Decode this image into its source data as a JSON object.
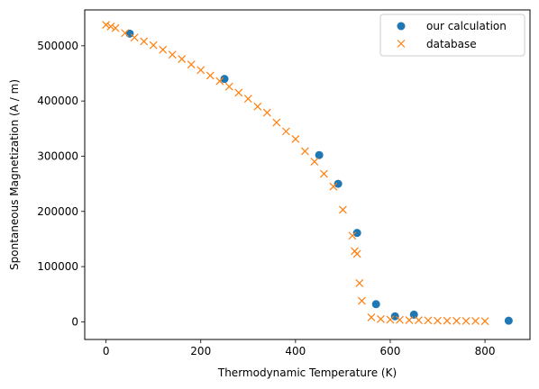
{
  "chart_data": {
    "type": "scatter",
    "xlabel": "Thermodynamic Temperature (K)",
    "ylabel": "Spontaneous Magnetization (A / m)",
    "xlim": [
      -45,
      895
    ],
    "ylim": [
      -32000,
      565000
    ],
    "x_ticks": [
      0,
      200,
      400,
      600,
      800
    ],
    "y_ticks": [
      0,
      100000,
      200000,
      300000,
      400000,
      500000
    ],
    "legend": {
      "placement": "top-right"
    },
    "series": [
      {
        "name": "our calculation",
        "marker": "circle",
        "color": "#1f77b4",
        "x": [
          50,
          250,
          450,
          490,
          530,
          570,
          610,
          650,
          850
        ],
        "y": [
          522000,
          440000,
          302000,
          250000,
          161000,
          32000,
          10000,
          13000,
          2000
        ]
      },
      {
        "name": "database",
        "marker": "x",
        "color": "#ff7f0e",
        "x": [
          0,
          10,
          20,
          40,
          60,
          80,
          100,
          120,
          140,
          160,
          180,
          200,
          220,
          240,
          260,
          280,
          300,
          320,
          340,
          360,
          380,
          400,
          420,
          440,
          460,
          480,
          500,
          520,
          525,
          530,
          535,
          540,
          560,
          580,
          600,
          620,
          640,
          660,
          680,
          700,
          720,
          740,
          760,
          780,
          800
        ],
        "y": [
          538000,
          535000,
          532000,
          523000,
          515000,
          508000,
          501000,
          493000,
          484000,
          476000,
          466000,
          456000,
          446000,
          436000,
          426000,
          415000,
          404000,
          390000,
          379000,
          361000,
          345000,
          331000,
          309000,
          290000,
          268000,
          245000,
          203000,
          156000,
          128000,
          123000,
          70000,
          38000,
          8000,
          5000,
          4000,
          3500,
          3000,
          3000,
          2500,
          2000,
          2000,
          1800,
          1500,
          1500,
          1200
        ]
      }
    ]
  }
}
